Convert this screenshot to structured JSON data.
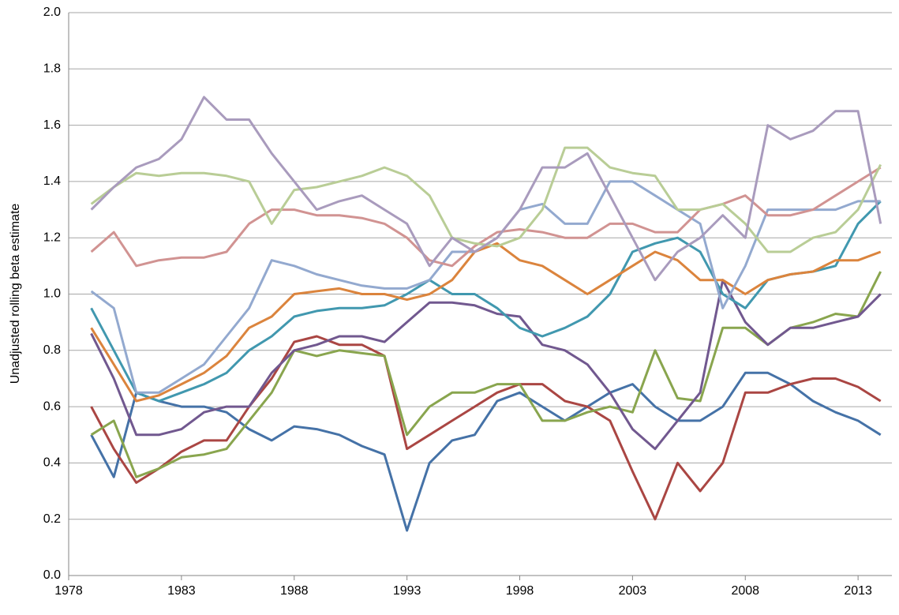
{
  "chart_data": {
    "type": "line",
    "y_label": "Unadjusted rolling beta estimate",
    "x": [
      1979,
      1980,
      1981,
      1982,
      1983,
      1984,
      1985,
      1986,
      1987,
      1988,
      1989,
      1990,
      1991,
      1992,
      1993,
      1994,
      1995,
      1996,
      1997,
      1998,
      1999,
      2000,
      2001,
      2002,
      2003,
      2004,
      2005,
      2006,
      2007,
      2008,
      2009,
      2010,
      2011,
      2012,
      2013,
      2014
    ],
    "xlim": [
      1978,
      2014.5
    ],
    "xticks": [
      1978,
      1983,
      1988,
      1993,
      1998,
      2003,
      2008,
      2013
    ],
    "ylim": [
      0,
      2
    ],
    "yticks": [
      {
        "value": 0,
        "label": "0.0"
      },
      0.2,
      0.4,
      0.6,
      0.8,
      {
        "value": 1,
        "label": "1.0"
      },
      1.2,
      1.4,
      1.6,
      1.8,
      {
        "value": 2,
        "label": "2.0"
      }
    ],
    "grid": true,
    "series": [
      {
        "color": "#4572a7",
        "values": [
          0.5,
          0.35,
          0.65,
          0.62,
          0.6,
          0.6,
          0.58,
          0.52,
          0.48,
          0.53,
          0.52,
          0.5,
          0.46,
          0.43,
          0.16,
          0.4,
          0.48,
          0.5,
          0.62,
          0.65,
          0.6,
          0.55,
          0.6,
          0.65,
          0.68,
          0.6,
          0.55,
          0.55,
          0.6,
          0.72,
          0.72,
          0.68,
          0.62,
          0.58,
          0.55,
          0.5
        ]
      },
      {
        "color": "#aa4643",
        "values": [
          0.6,
          0.45,
          0.33,
          0.38,
          0.44,
          0.48,
          0.48,
          0.6,
          0.7,
          0.83,
          0.85,
          0.82,
          0.82,
          0.78,
          0.45,
          0.5,
          0.55,
          0.6,
          0.65,
          0.68,
          0.68,
          0.62,
          0.6,
          0.55,
          0.37,
          0.2,
          0.4,
          0.3,
          0.4,
          0.65,
          0.65,
          0.68,
          0.7,
          0.7,
          0.67,
          0.62
        ]
      },
      {
        "color": "#89a54e",
        "values": [
          0.5,
          0.55,
          0.35,
          0.38,
          0.42,
          0.43,
          0.45,
          0.55,
          0.65,
          0.8,
          0.78,
          0.8,
          0.79,
          0.78,
          0.5,
          0.6,
          0.65,
          0.65,
          0.68,
          0.68,
          0.55,
          0.55,
          0.58,
          0.6,
          0.58,
          0.8,
          0.63,
          0.62,
          0.88,
          0.88,
          0.82,
          0.88,
          0.9,
          0.93,
          0.92,
          1.08
        ]
      },
      {
        "color": "#71588f",
        "values": [
          0.86,
          0.7,
          0.5,
          0.5,
          0.52,
          0.58,
          0.6,
          0.6,
          0.72,
          0.8,
          0.82,
          0.85,
          0.85,
          0.83,
          0.9,
          0.97,
          0.97,
          0.96,
          0.93,
          0.92,
          0.82,
          0.8,
          0.75,
          0.65,
          0.52,
          0.45,
          0.55,
          0.65,
          1.05,
          0.9,
          0.82,
          0.88,
          0.88,
          0.9,
          0.92,
          1.0
        ]
      },
      {
        "color": "#4198af",
        "values": [
          0.95,
          0.8,
          0.65,
          0.62,
          0.65,
          0.68,
          0.72,
          0.8,
          0.85,
          0.92,
          0.94,
          0.95,
          0.95,
          0.96,
          1.0,
          1.05,
          1.0,
          1.0,
          0.95,
          0.88,
          0.85,
          0.88,
          0.92,
          1.0,
          1.15,
          1.18,
          1.2,
          1.15,
          1.0,
          0.95,
          1.05,
          1.07,
          1.08,
          1.1,
          1.25,
          1.33
        ]
      },
      {
        "color": "#db843d",
        "values": [
          0.88,
          0.75,
          0.62,
          0.64,
          0.68,
          0.72,
          0.78,
          0.88,
          0.92,
          1.0,
          1.01,
          1.02,
          1.0,
          1.0,
          0.98,
          1.0,
          1.05,
          1.15,
          1.18,
          1.12,
          1.1,
          1.05,
          1.0,
          1.05,
          1.1,
          1.15,
          1.12,
          1.05,
          1.05,
          1.0,
          1.05,
          1.07,
          1.08,
          1.12,
          1.12,
          1.15
        ]
      },
      {
        "color": "#93a9cf",
        "values": [
          1.01,
          0.95,
          0.65,
          0.65,
          0.7,
          0.75,
          0.85,
          0.95,
          1.12,
          1.1,
          1.07,
          1.05,
          1.03,
          1.02,
          1.02,
          1.05,
          1.15,
          1.15,
          1.2,
          1.3,
          1.32,
          1.25,
          1.25,
          1.4,
          1.4,
          1.35,
          1.3,
          1.25,
          0.95,
          1.1,
          1.3,
          1.3,
          1.3,
          1.3,
          1.33,
          1.33
        ]
      },
      {
        "color": "#d19392",
        "values": [
          1.15,
          1.22,
          1.1,
          1.12,
          1.13,
          1.13,
          1.15,
          1.25,
          1.3,
          1.3,
          1.28,
          1.28,
          1.27,
          1.25,
          1.2,
          1.12,
          1.1,
          1.17,
          1.22,
          1.23,
          1.22,
          1.2,
          1.2,
          1.25,
          1.25,
          1.22,
          1.22,
          1.3,
          1.32,
          1.35,
          1.28,
          1.28,
          1.3,
          1.35,
          1.4,
          1.45
        ]
      },
      {
        "color": "#b9cd96",
        "values": [
          1.32,
          1.38,
          1.43,
          1.42,
          1.43,
          1.43,
          1.42,
          1.4,
          1.25,
          1.37,
          1.38,
          1.4,
          1.42,
          1.45,
          1.42,
          1.35,
          1.2,
          1.18,
          1.17,
          1.2,
          1.3,
          1.52,
          1.52,
          1.45,
          1.43,
          1.42,
          1.3,
          1.3,
          1.32,
          1.25,
          1.15,
          1.15,
          1.2,
          1.22,
          1.3,
          1.46
        ]
      },
      {
        "color": "#a99bbd",
        "values": [
          1.3,
          1.38,
          1.45,
          1.48,
          1.55,
          1.7,
          1.62,
          1.62,
          1.5,
          1.4,
          1.3,
          1.33,
          1.35,
          1.3,
          1.25,
          1.1,
          1.2,
          1.15,
          1.2,
          1.3,
          1.45,
          1.45,
          1.5,
          1.35,
          1.2,
          1.05,
          1.15,
          1.2,
          1.28,
          1.2,
          1.6,
          1.55,
          1.58,
          1.65,
          1.65,
          1.25
        ]
      }
    ]
  }
}
